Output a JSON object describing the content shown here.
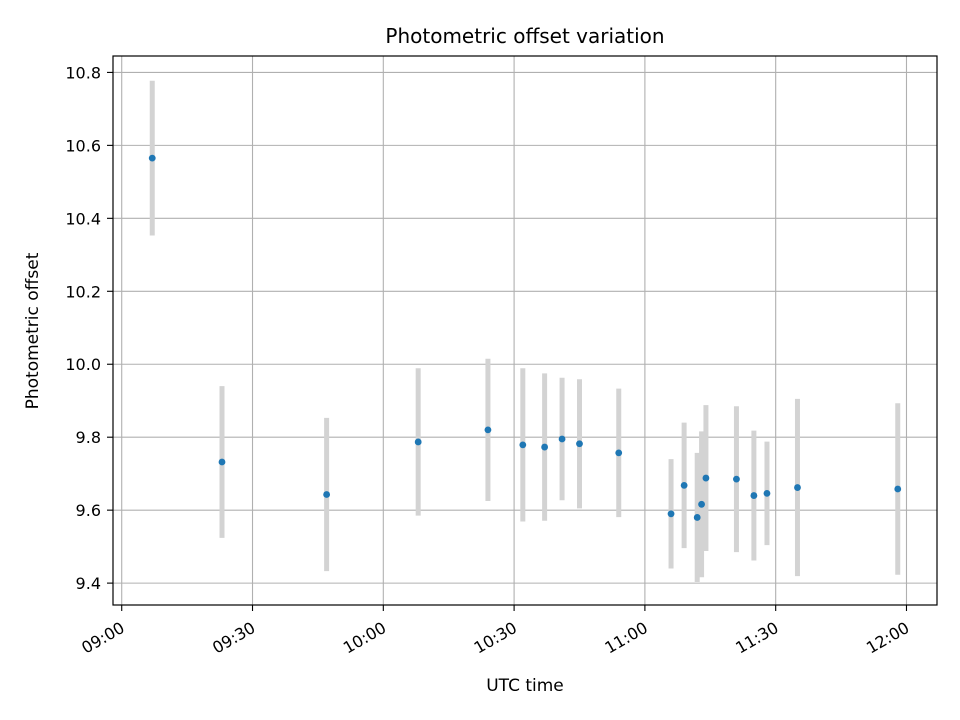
{
  "chart_data": {
    "type": "scatter",
    "title": "Photometric offset variation",
    "xlabel": "UTC time",
    "ylabel": "Photometric offset",
    "x_tick_labels": [
      "09:00",
      "09:30",
      "10:00",
      "10:30",
      "11:00",
      "11:30",
      "12:00"
    ],
    "y_tick_labels": [
      "9.4",
      "9.6",
      "9.8",
      "10.0",
      "10.2",
      "10.4",
      "10.6",
      "10.8"
    ],
    "xlim": [
      "08:58",
      "12:07"
    ],
    "ylim": [
      9.34,
      10.845
    ],
    "grid": true,
    "marker_color": "#1f77b4",
    "errorbar_color": "#d3d3d3",
    "points": [
      {
        "time": "09:07",
        "y": 10.565,
        "err": 0.212
      },
      {
        "time": "09:23",
        "y": 9.732,
        "err": 0.208
      },
      {
        "time": "09:47",
        "y": 9.643,
        "err": 0.21
      },
      {
        "time": "10:08",
        "y": 9.787,
        "err": 0.202
      },
      {
        "time": "10:24",
        "y": 9.82,
        "err": 0.195
      },
      {
        "time": "10:32",
        "y": 9.779,
        "err": 0.21
      },
      {
        "time": "10:37",
        "y": 9.773,
        "err": 0.202
      },
      {
        "time": "10:41",
        "y": 9.795,
        "err": 0.168
      },
      {
        "time": "10:45",
        "y": 9.782,
        "err": 0.177
      },
      {
        "time": "10:54",
        "y": 9.757,
        "err": 0.176
      },
      {
        "time": "11:06",
        "y": 9.59,
        "err": 0.15
      },
      {
        "time": "11:09",
        "y": 9.668,
        "err": 0.172
      },
      {
        "time": "11:12",
        "y": 9.58,
        "err": 0.177
      },
      {
        "time": "11:13",
        "y": 9.616,
        "err": 0.2
      },
      {
        "time": "11:14",
        "y": 9.688,
        "err": 0.2
      },
      {
        "time": "11:21",
        "y": 9.685,
        "err": 0.2
      },
      {
        "time": "11:25",
        "y": 9.64,
        "err": 0.178
      },
      {
        "time": "11:28",
        "y": 9.646,
        "err": 0.142
      },
      {
        "time": "11:35",
        "y": 9.662,
        "err": 0.243
      },
      {
        "time": "11:58",
        "y": 9.658,
        "err": 0.235
      }
    ]
  }
}
